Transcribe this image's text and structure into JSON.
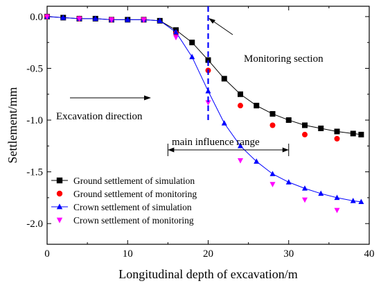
{
  "chart_data": {
    "type": "line",
    "title": "",
    "xlabel": "Longitudinal depth of excavation/m",
    "ylabel": "Settlement/mm",
    "xlim": [
      0,
      40
    ],
    "ylim": [
      -2.2,
      0.1
    ],
    "xticks": [
      0,
      10,
      20,
      30,
      40
    ],
    "yticks": [
      0.0,
      -0.5,
      -1.0,
      -1.5,
      -2.0
    ],
    "xtick_labels": [
      "0",
      "10",
      "20",
      "30",
      "40"
    ],
    "ytick_labels": [
      "0.0",
      "-0.5",
      "-1.0",
      "-1.5",
      "-2.0"
    ],
    "grid": false,
    "legend_position": "bottom-left",
    "series": [
      {
        "name": "Ground settlement of simulation",
        "color": "#000000",
        "marker": "square",
        "line": true,
        "x": [
          0,
          2,
          4,
          6,
          8,
          10,
          12,
          14,
          16,
          18,
          20,
          22,
          24,
          26,
          28,
          30,
          32,
          34,
          36,
          38,
          39
        ],
        "y": [
          0.0,
          -0.01,
          -0.02,
          -0.02,
          -0.03,
          -0.03,
          -0.03,
          -0.04,
          -0.13,
          -0.25,
          -0.42,
          -0.6,
          -0.75,
          -0.86,
          -0.94,
          -1.0,
          -1.05,
          -1.08,
          -1.11,
          -1.13,
          -1.14
        ]
      },
      {
        "name": "Ground settlement of monitoring",
        "color": "#ff0000",
        "marker": "circle",
        "line": false,
        "x": [
          0,
          4,
          8,
          12,
          16,
          20,
          24,
          28,
          32,
          36
        ],
        "y": [
          0.0,
          -0.02,
          -0.03,
          -0.03,
          -0.16,
          -0.52,
          -0.86,
          -1.05,
          -1.14,
          -1.18
        ]
      },
      {
        "name": "Crown settlement  of simulation",
        "color": "#0000ff",
        "marker": "triangle-up",
        "line": true,
        "x": [
          0,
          2,
          4,
          6,
          8,
          10,
          12,
          14,
          16,
          18,
          20,
          22,
          24,
          26,
          28,
          30,
          32,
          34,
          36,
          38,
          39
        ],
        "y": [
          0.0,
          -0.01,
          -0.02,
          -0.02,
          -0.03,
          -0.03,
          -0.03,
          -0.04,
          -0.15,
          -0.39,
          -0.72,
          -1.03,
          -1.25,
          -1.4,
          -1.52,
          -1.6,
          -1.66,
          -1.71,
          -1.75,
          -1.78,
          -1.79
        ]
      },
      {
        "name": "Crown settlement of monitoring",
        "color": "#ff00ff",
        "marker": "triangle-down",
        "line": false,
        "x": [
          0,
          4,
          8,
          12,
          16,
          20,
          24,
          28,
          32,
          36
        ],
        "y": [
          0.0,
          -0.02,
          -0.03,
          -0.03,
          -0.2,
          -0.83,
          -1.39,
          -1.62,
          -1.77,
          -1.87
        ]
      }
    ],
    "annotations": {
      "monitoring_section": {
        "label": "Monitoring section",
        "x": 20
      },
      "excavation_direction": {
        "label": "Excavation direction"
      },
      "influence_range": {
        "label": "main influence range",
        "x_start": 15,
        "x_end": 30
      }
    }
  }
}
